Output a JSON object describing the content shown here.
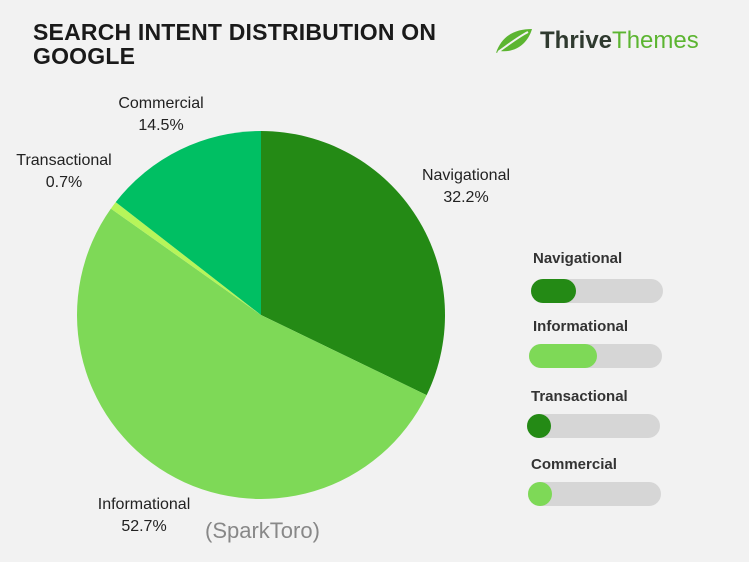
{
  "header": {
    "title": "SEARCH INTENT DISTRIBUTION ON GOOGLE",
    "logo_part1": "Thrive",
    "logo_part2": "Themes",
    "logo_icon": "leaf-icon"
  },
  "source": "(SparkToro)",
  "colors": {
    "navigational": "#248a15",
    "informational": "#7ed957",
    "transactional": "#b6f55a",
    "commercial": "#00bf63",
    "track": "#d6d6d6"
  },
  "chart_data": {
    "type": "pie",
    "title": "SEARCH INTENT DISTRIBUTION ON GOOGLE",
    "slices": [
      {
        "label": "Navigational",
        "value": 32.2,
        "value_label": "32.2%",
        "color": "#248a15"
      },
      {
        "label": "Informational",
        "value": 52.7,
        "value_label": "52.7%",
        "color": "#7ed957"
      },
      {
        "label": "Transactional",
        "value": 0.7,
        "value_label": "0.7%",
        "color": "#b6f55a"
      },
      {
        "label": "Commercial",
        "value": 14.5,
        "value_label": "14.5%",
        "color": "#00bf63"
      }
    ],
    "start_angle_deg": 0,
    "direction": "clockwise"
  },
  "legend": {
    "items": [
      {
        "label": "Navigational",
        "fill_fraction": 0.34,
        "color": "#248a15"
      },
      {
        "label": "Informational",
        "fill_fraction": 0.51,
        "color": "#7ed957"
      },
      {
        "label": "Transactional",
        "fill_fraction": 0.18,
        "color": "#248a15"
      },
      {
        "label": "Commercial",
        "fill_fraction": 0.18,
        "color": "#7ed957"
      }
    ]
  }
}
